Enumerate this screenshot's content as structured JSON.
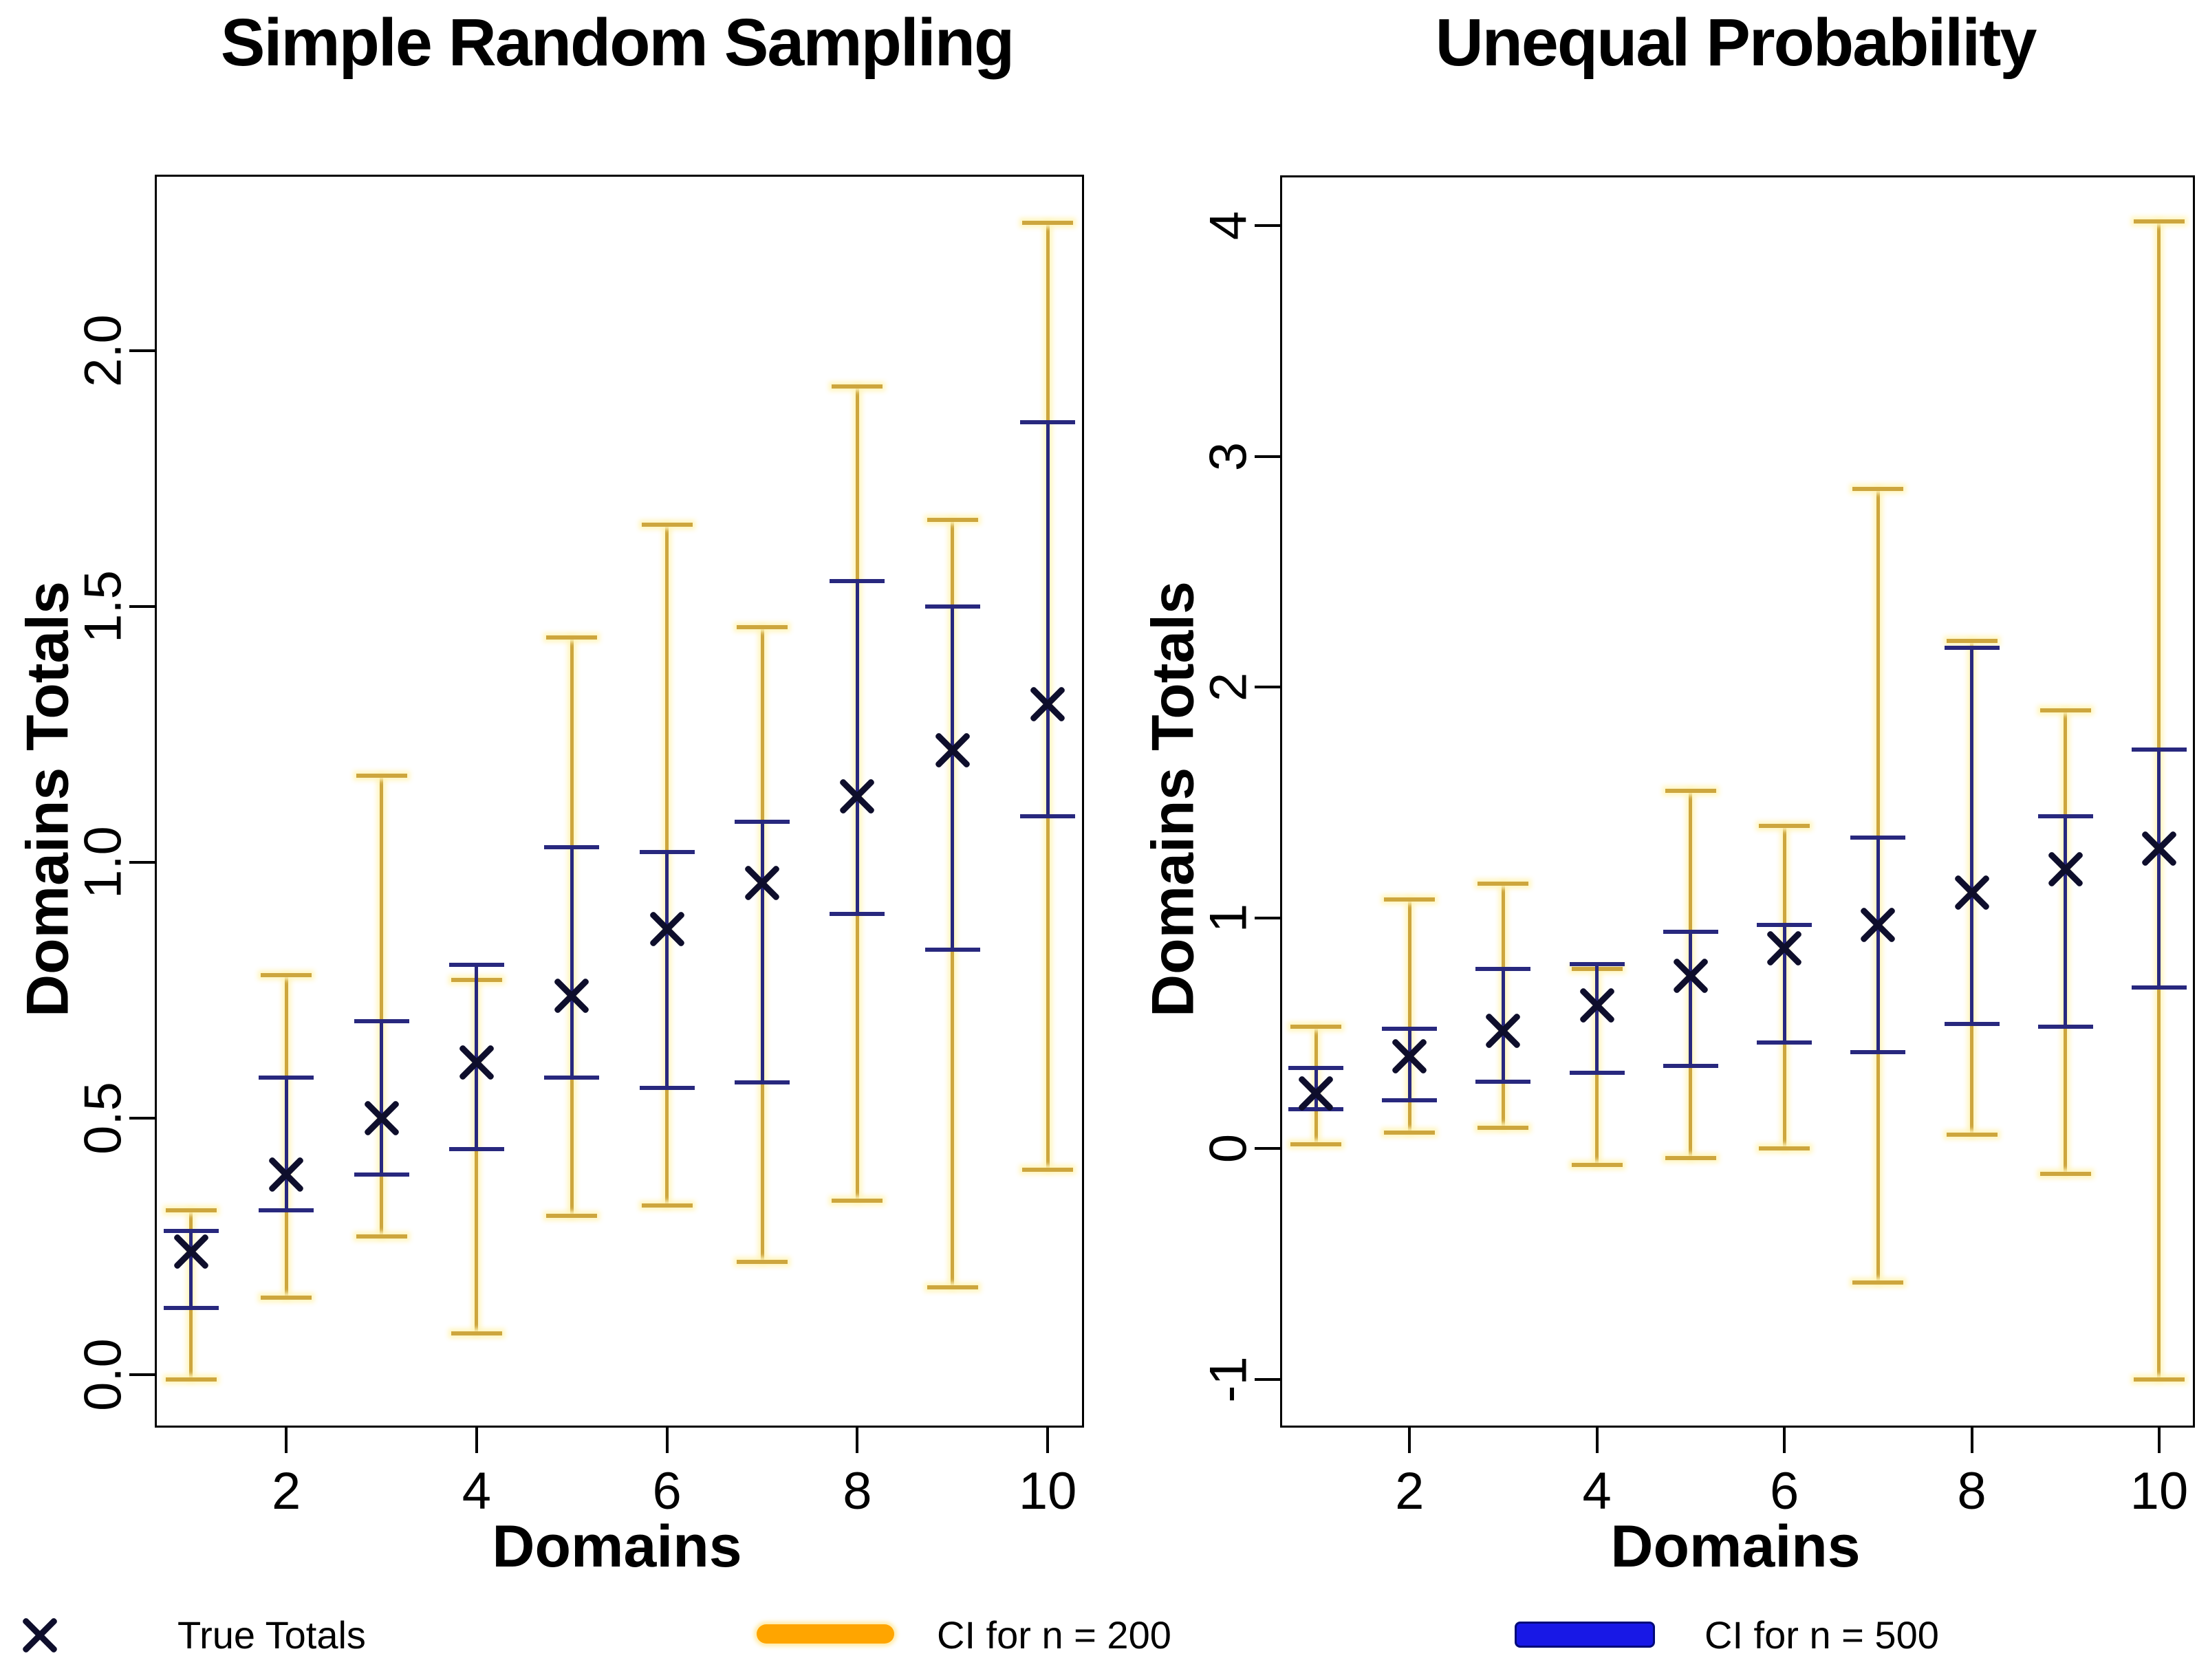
{
  "colors": {
    "ci200_bar": "#cda63e",
    "ci200_glow": "#fff4ba",
    "ci500_bar": "#28287e",
    "marker": "#0e0e2c",
    "legend_ci200": "#ffa500",
    "legend_ci500": "#1818e6"
  },
  "legend": {
    "true_label": "True Totals",
    "ci200_label": "CI for n = 200",
    "ci500_label": "CI for n = 500"
  },
  "chart_data": [
    {
      "type": "errorbar",
      "title": "Simple Random Sampling",
      "xlabel": "Domains",
      "ylabel": "Domains Totals",
      "x": [
        1,
        2,
        3,
        4,
        5,
        6,
        7,
        8,
        9,
        10
      ],
      "xtick_values": [
        2,
        4,
        6,
        8,
        10
      ],
      "xtick_labels": [
        "2",
        "4",
        "6",
        "8",
        "10"
      ],
      "ytick_values": [
        0.0,
        0.5,
        1.0,
        1.5,
        2.0
      ],
      "ytick_labels": [
        "0.0",
        "0.5",
        "1.0",
        "1.5",
        "2.0"
      ],
      "axis_range_x": [
        0.64,
        10.36
      ],
      "axis_range_y": [
        -0.1,
        2.34
      ],
      "grid": false,
      "series": [
        {
          "name": "CI for n = 200",
          "kind": "interval",
          "color_key": "ci200",
          "low": [
            -0.01,
            0.15,
            0.27,
            0.08,
            0.31,
            0.33,
            0.22,
            0.34,
            0.17,
            0.4
          ],
          "high": [
            0.32,
            0.78,
            1.17,
            0.77,
            1.44,
            1.66,
            1.46,
            1.93,
            1.67,
            2.25
          ]
        },
        {
          "name": "CI for n = 500",
          "kind": "interval",
          "color_key": "ci500",
          "low": [
            0.13,
            0.32,
            0.39,
            0.44,
            0.58,
            0.56,
            0.57,
            0.9,
            0.83,
            1.09
          ],
          "high": [
            0.28,
            0.58,
            0.69,
            0.8,
            1.03,
            1.02,
            1.08,
            1.55,
            1.5,
            1.86
          ]
        },
        {
          "name": "True Totals",
          "kind": "point",
          "values": [
            0.24,
            0.39,
            0.5,
            0.61,
            0.74,
            0.87,
            0.96,
            1.13,
            1.22,
            1.31
          ]
        }
      ]
    },
    {
      "type": "errorbar",
      "title": "Unequal Probability",
      "xlabel": "Domains",
      "ylabel": "Domains Totals",
      "x": [
        1,
        2,
        3,
        4,
        5,
        6,
        7,
        8,
        9,
        10
      ],
      "xtick_values": [
        2,
        4,
        6,
        8,
        10
      ],
      "xtick_labels": [
        "2",
        "4",
        "6",
        "8",
        "10"
      ],
      "ytick_values": [
        -1,
        0,
        1,
        2,
        3,
        4
      ],
      "ytick_labels": [
        "-1",
        "0",
        "1",
        "2",
        "3",
        "4"
      ],
      "axis_range_x": [
        0.64,
        10.36
      ],
      "axis_range_y": [
        -1.2,
        4.21
      ],
      "grid": false,
      "series": [
        {
          "name": "CI for n = 200",
          "kind": "interval",
          "color_key": "ci200",
          "low": [
            0.02,
            0.07,
            0.09,
            -0.07,
            -0.04,
            0.0,
            -0.58,
            0.06,
            -0.11,
            -1.0
          ],
          "high": [
            0.53,
            1.08,
            1.15,
            0.78,
            1.55,
            1.4,
            2.86,
            2.2,
            1.9,
            4.02
          ]
        },
        {
          "name": "CI for n = 500",
          "kind": "interval",
          "color_key": "ci500",
          "low": [
            0.17,
            0.21,
            0.29,
            0.33,
            0.36,
            0.46,
            0.42,
            0.54,
            0.53,
            0.7
          ],
          "high": [
            0.35,
            0.52,
            0.78,
            0.8,
            0.94,
            0.97,
            1.35,
            2.17,
            1.44,
            1.73
          ]
        },
        {
          "name": "True Totals",
          "kind": "point",
          "values": [
            0.24,
            0.4,
            0.51,
            0.62,
            0.75,
            0.87,
            0.97,
            1.11,
            1.21,
            1.3
          ]
        }
      ]
    }
  ]
}
